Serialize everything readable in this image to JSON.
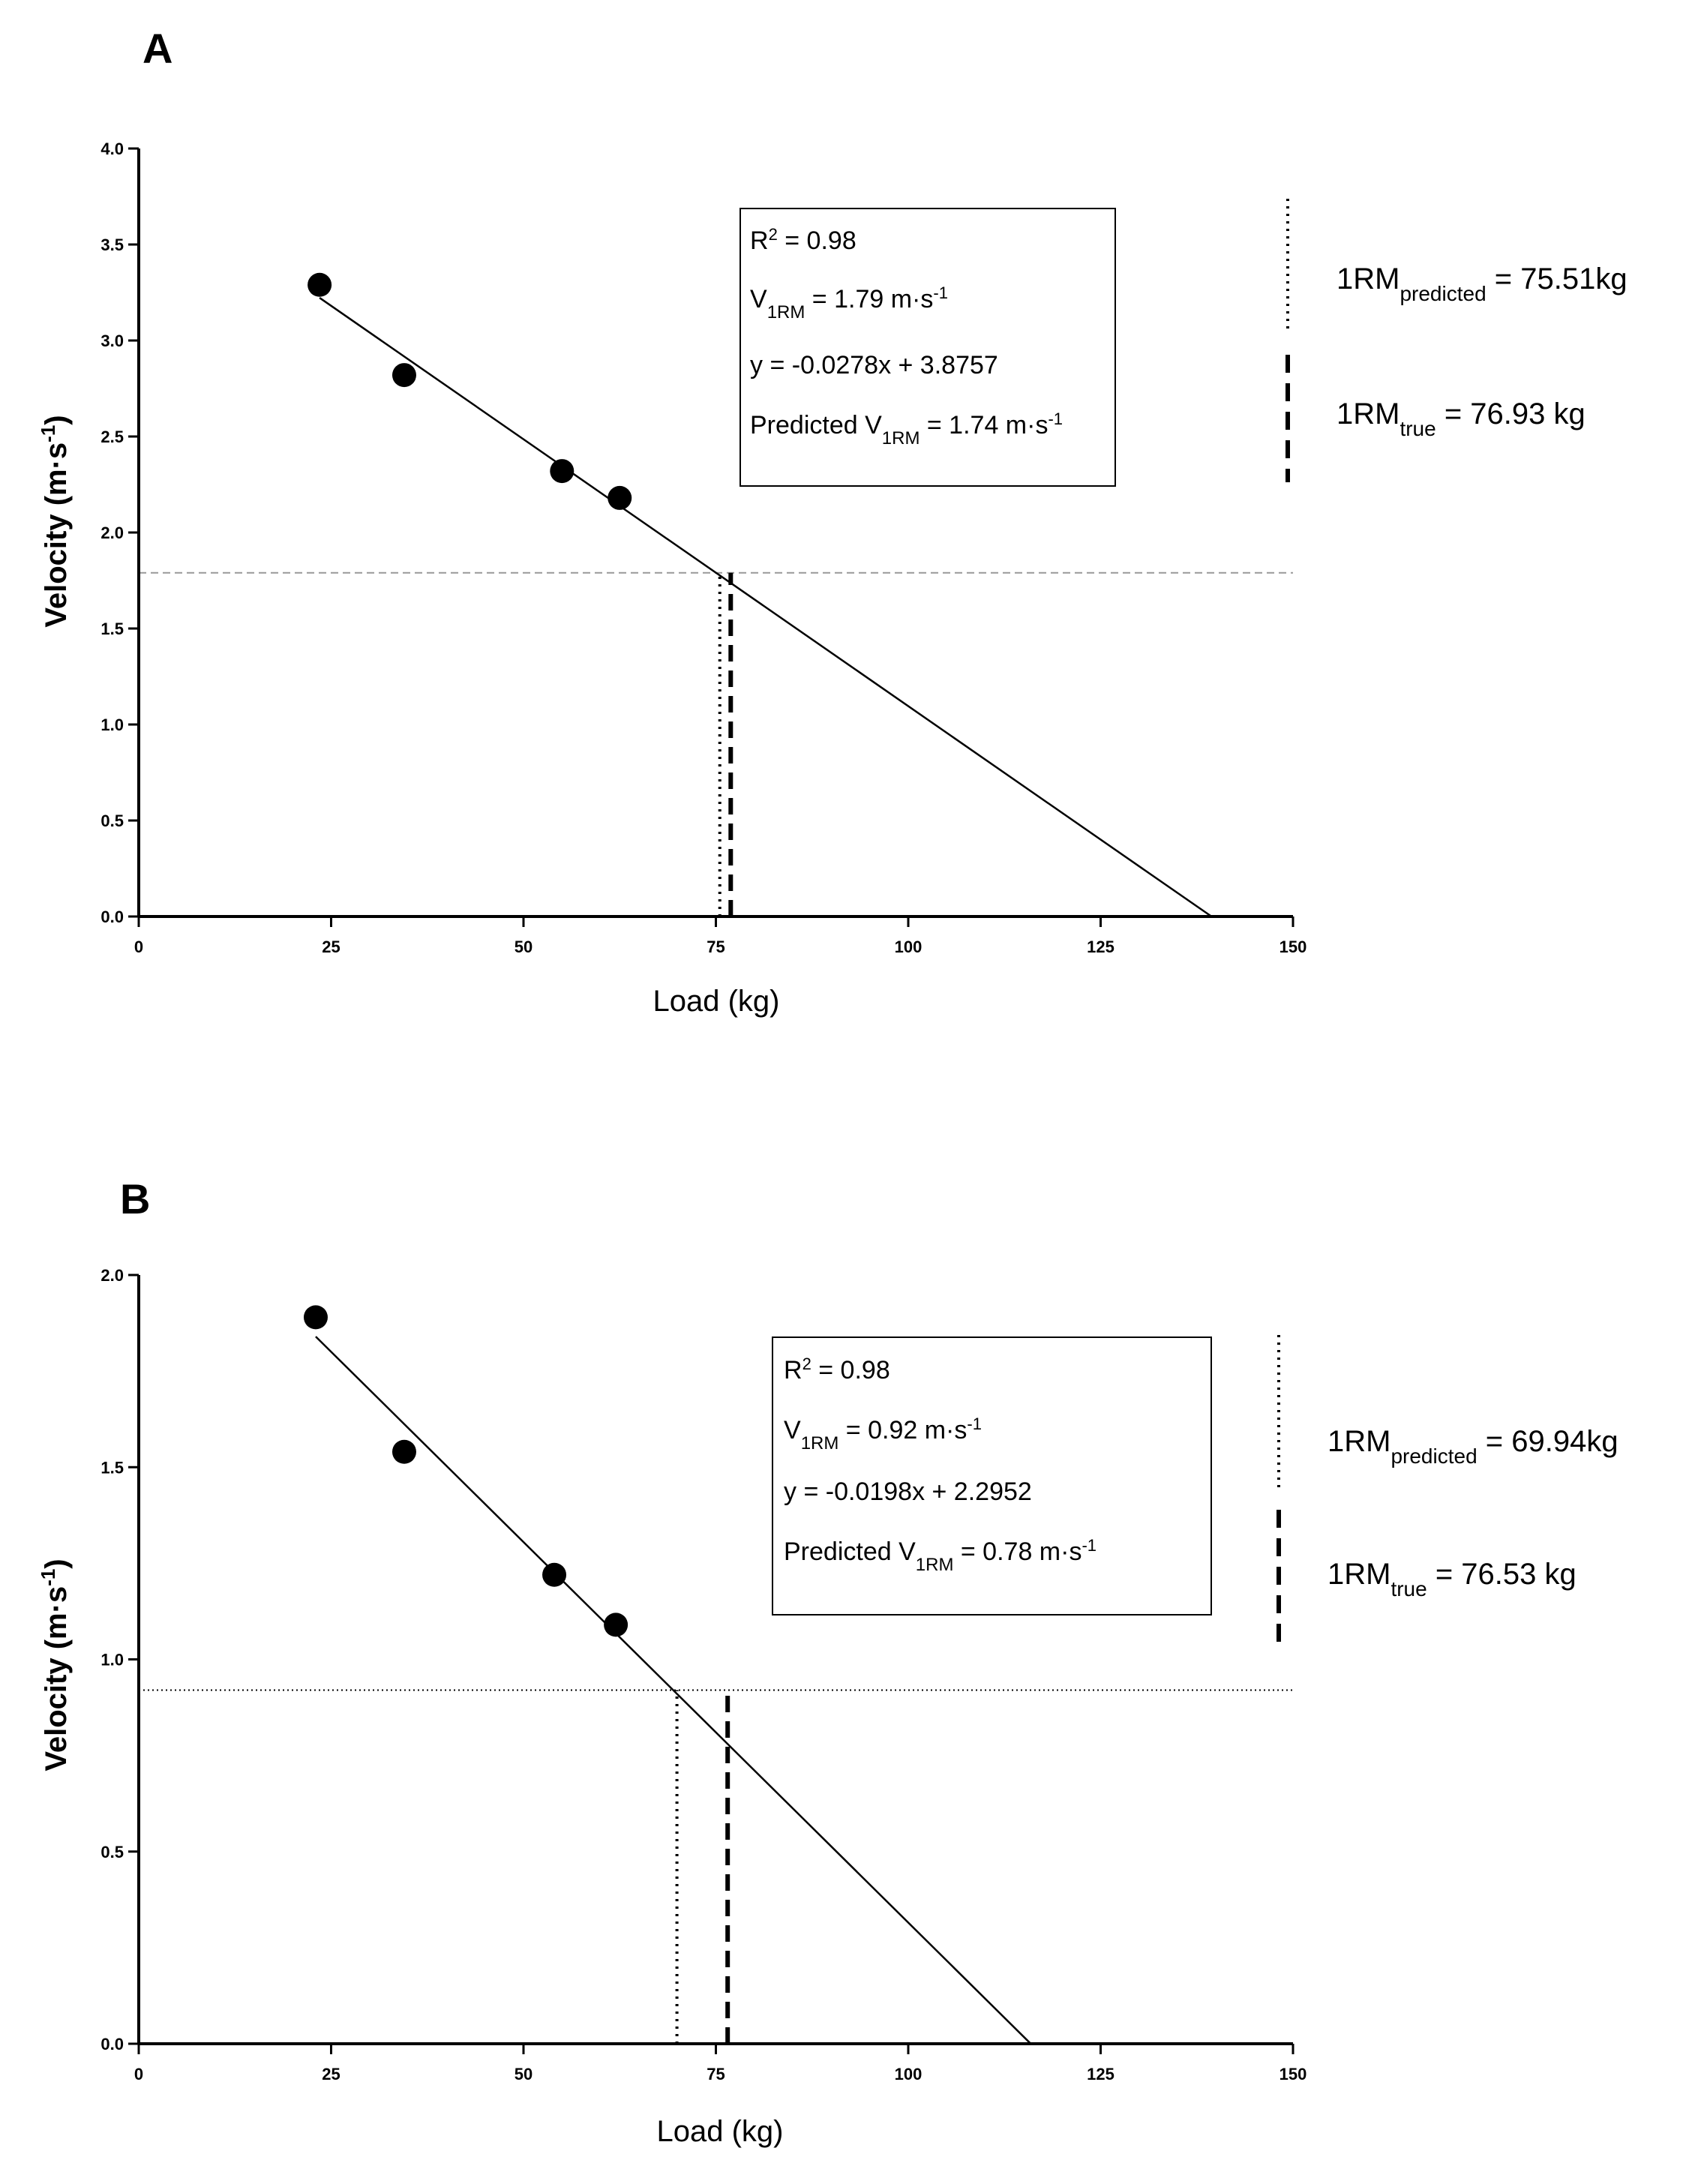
{
  "chart_data": [
    {
      "type": "scatter",
      "panel": "A",
      "xlabel": "Load (kg)",
      "ylabel": "Velocity (m·s-1)",
      "ylabel_parts": {
        "base": "Velocity (m·s",
        "sup": "-1",
        "end": ")"
      },
      "xlim": [
        0,
        150
      ],
      "ylim": [
        0,
        4
      ],
      "xticks": [
        0,
        25,
        50,
        75,
        100,
        125,
        150
      ],
      "yticks": [
        0,
        0.5,
        1.0,
        1.5,
        2.0,
        2.5,
        3.0,
        3.5,
        4.0
      ],
      "xtick_labels": [
        "0",
        "25",
        "50",
        "75",
        "100",
        "125",
        "150"
      ],
      "ytick_labels": [
        "0.0",
        "0.5",
        "1.0",
        "1.5",
        "2.0",
        "2.5",
        "3.0",
        "3.5",
        "4.0"
      ],
      "points": [
        {
          "x": 23.5,
          "y": 3.29
        },
        {
          "x": 34.5,
          "y": 2.82
        },
        {
          "x": 55,
          "y": 2.32
        },
        {
          "x": 62.5,
          "y": 2.18
        }
      ],
      "fit": {
        "slope": -0.0278,
        "intercept": 3.8757,
        "x_start": 23.5,
        "x_end": 139.4
      },
      "v1rm_line": 1.79,
      "predicted_1rm_x": 75.51,
      "true_1rm_x": 76.93,
      "stats_box": {
        "r2": {
          "base": "R",
          "sup": "2",
          "rest": " = 0.98"
        },
        "v1rm": {
          "base": "V",
          "sub": "1RM",
          "rest": " = 1.79 m·s",
          "sup": "-1"
        },
        "equation": "y = -0.0278x + 3.8757",
        "predicted_v1rm": {
          "base": "Predicted V",
          "sub": "1RM",
          "rest": " = 1.74 m·s",
          "sup": "-1"
        }
      },
      "legend": {
        "predicted": {
          "base": "1RM",
          "sub": "predicted",
          "rest": " = 75.51kg"
        },
        "true": {
          "base": "1RM",
          "sub": "true",
          "rest": " = 76.93 kg"
        }
      }
    },
    {
      "type": "scatter",
      "panel": "B",
      "xlabel": "Load (kg)",
      "ylabel": "Velocity (m·s-1)",
      "ylabel_parts": {
        "base": "Velocity (m·s",
        "sup": "-1",
        "end": ")"
      },
      "xlim": [
        0,
        150
      ],
      "ylim": [
        0,
        2
      ],
      "xticks": [
        0,
        25,
        50,
        75,
        100,
        125,
        150
      ],
      "yticks": [
        0,
        0.5,
        1.0,
        1.5,
        2.0
      ],
      "xtick_labels": [
        "0",
        "25",
        "50",
        "75",
        "100",
        "125",
        "150"
      ],
      "ytick_labels": [
        "0.0",
        "0.5",
        "1.0",
        "1.5",
        "2.0"
      ],
      "points": [
        {
          "x": 23,
          "y": 1.89
        },
        {
          "x": 34.5,
          "y": 1.54
        },
        {
          "x": 54,
          "y": 1.22
        },
        {
          "x": 62,
          "y": 1.09
        }
      ],
      "fit": {
        "slope": -0.0198,
        "intercept": 2.2952,
        "x_start": 23,
        "x_end": 115.9
      },
      "v1rm_line": 0.92,
      "predicted_1rm_x": 69.94,
      "true_1rm_x": 76.53,
      "stats_box": {
        "r2": {
          "base": "R",
          "sup": "2",
          "rest": " = 0.98"
        },
        "v1rm": {
          "base": "V",
          "sub": "1RM",
          "rest": " = 0.92 m·s",
          "sup": "-1"
        },
        "equation": "y = -0.0198x + 2.2952",
        "predicted_v1rm": {
          "base": "Predicted V",
          "sub": "1RM",
          "rest": " = 0.78 m·s",
          "sup": "-1"
        }
      },
      "legend": {
        "predicted": {
          "base": "1RM",
          "sub": "predicted",
          "rest": " = 69.94kg"
        },
        "true": {
          "base": "1RM",
          "sub": "true",
          "rest": " = 76.53 kg"
        }
      }
    }
  ]
}
